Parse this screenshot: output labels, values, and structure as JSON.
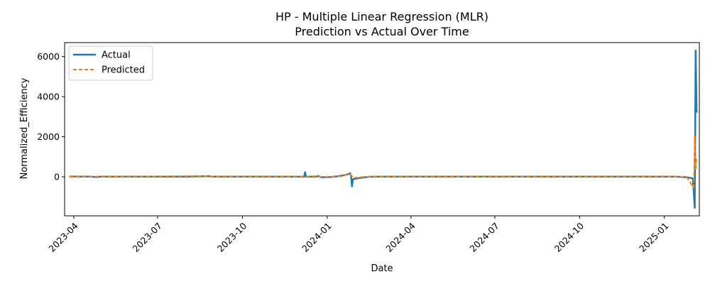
{
  "chart_data": {
    "type": "line",
    "title": "HP - Multiple Linear Regression (MLR)",
    "subtitle": "Prediction vs Actual Over Time",
    "xlabel": "Date",
    "ylabel": "Normalized_Efficiency",
    "x_range": [
      "2023-03-22",
      "2025-02-08"
    ],
    "y_range": [
      -1950,
      6700
    ],
    "grid": false,
    "legend_position": "top-left",
    "x_ticks": [
      "2023-04",
      "2023-07",
      "2023-10",
      "2024-01",
      "2024-04",
      "2024-07",
      "2024-10",
      "2025-01"
    ],
    "y_ticks": [
      0,
      2000,
      4000,
      6000
    ],
    "y_tick_labels": [
      "0",
      "2000",
      "4000",
      "6000"
    ],
    "series": [
      {
        "name": "Actual",
        "color": "#1f77b4",
        "style": "solid",
        "points": [
          [
            "2023-03-27",
            15
          ],
          [
            "2023-04-20",
            12
          ],
          [
            "2023-04-25",
            -15
          ],
          [
            "2023-04-30",
            10
          ],
          [
            "2023-06-01",
            8
          ],
          [
            "2023-07-10",
            12
          ],
          [
            "2023-08-01",
            10
          ],
          [
            "2023-08-26",
            30
          ],
          [
            "2023-08-28",
            10
          ],
          [
            "2023-10-01",
            8
          ],
          [
            "2023-11-01",
            10
          ],
          [
            "2023-12-07",
            5
          ],
          [
            "2023-12-08",
            230
          ],
          [
            "2023-12-09",
            10
          ],
          [
            "2023-12-20",
            8
          ],
          [
            "2023-12-23",
            40
          ],
          [
            "2023-12-25",
            -20
          ],
          [
            "2024-01-05",
            -10
          ],
          [
            "2024-01-12",
            20
          ],
          [
            "2024-01-20",
            80
          ],
          [
            "2024-01-25",
            150
          ],
          [
            "2024-01-26",
            180
          ],
          [
            "2024-01-27",
            40
          ],
          [
            "2024-01-28",
            -480
          ],
          [
            "2024-01-29",
            -120
          ],
          [
            "2024-02-05",
            -60
          ],
          [
            "2024-02-15",
            0
          ],
          [
            "2024-03-01",
            8
          ],
          [
            "2024-06-01",
            8
          ],
          [
            "2024-09-01",
            8
          ],
          [
            "2024-12-01",
            8
          ],
          [
            "2025-01-15",
            5
          ],
          [
            "2025-01-26",
            -30
          ],
          [
            "2025-02-01",
            -80
          ],
          [
            "2025-02-03",
            -1550
          ],
          [
            "2025-02-04",
            6300
          ],
          [
            "2025-02-05",
            3200
          ]
        ]
      },
      {
        "name": "Predicted",
        "color": "#ff7f0e",
        "style": "dashed",
        "points": [
          [
            "2023-03-27",
            12
          ],
          [
            "2023-06-01",
            10
          ],
          [
            "2023-08-26",
            40
          ],
          [
            "2023-08-28",
            10
          ],
          [
            "2023-12-01",
            10
          ],
          [
            "2023-12-23",
            30
          ],
          [
            "2023-12-25",
            -5
          ],
          [
            "2024-01-15",
            20
          ],
          [
            "2024-01-25",
            120
          ],
          [
            "2024-01-26",
            150
          ],
          [
            "2024-01-28",
            20
          ],
          [
            "2024-01-29",
            -60
          ],
          [
            "2024-02-10",
            0
          ],
          [
            "2024-03-01",
            10
          ],
          [
            "2024-12-01",
            10
          ],
          [
            "2025-01-25",
            5
          ],
          [
            "2025-02-02",
            -550
          ],
          [
            "2025-02-03",
            2000
          ],
          [
            "2025-02-04",
            400
          ],
          [
            "2025-02-05",
            1000
          ]
        ]
      }
    ]
  }
}
